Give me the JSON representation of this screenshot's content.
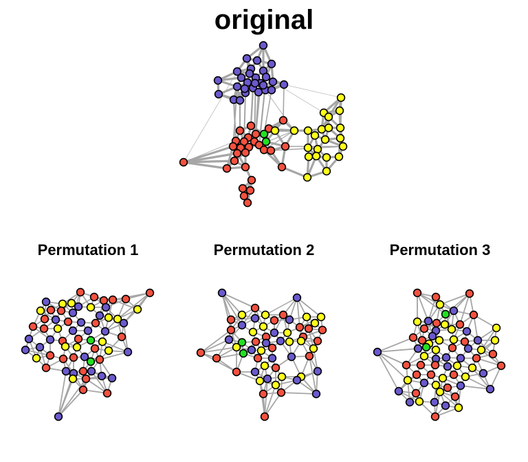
{
  "titles": {
    "original": "original",
    "perm1": "Permutation 1",
    "perm2": "Permutation 2",
    "perm3": "Permutation 3"
  },
  "colors": {
    "purple": "#6a5acd",
    "red": "#f4513f",
    "yellow": "#ffff1a",
    "green": "#22e022",
    "edge": "#a6a6a6"
  }
}
